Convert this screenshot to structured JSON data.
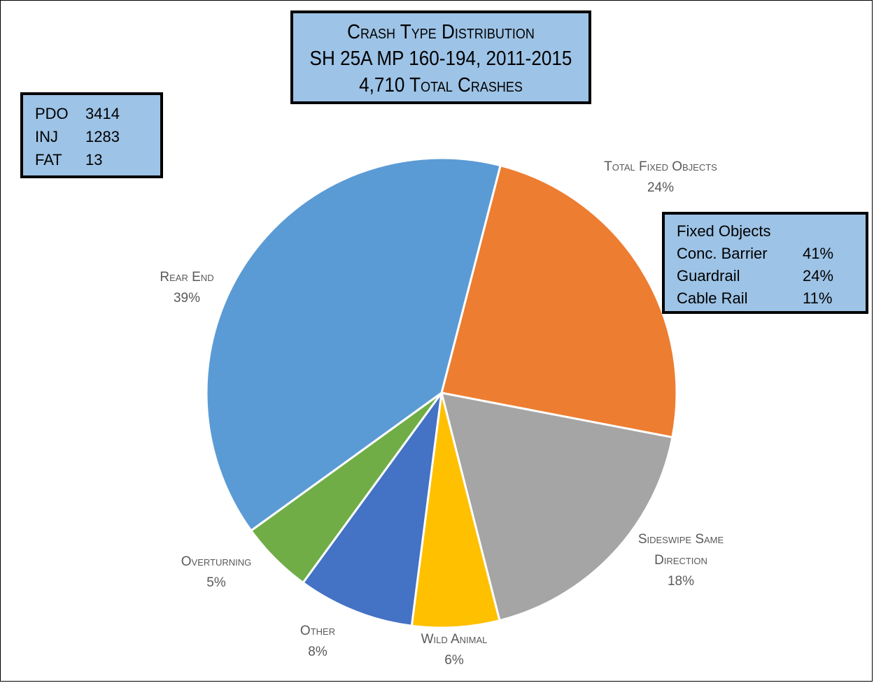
{
  "chart_data": {
    "type": "pie",
    "title_lines": [
      "Crash Type Distribution",
      "SH 25A MP 160-194, 2011-2015",
      "4,710 Total Crashes"
    ],
    "slices": [
      {
        "name": "Total Fixed Objects",
        "label_lines": [
          "Total Fixed Objects"
        ],
        "value": 24,
        "label": "24%",
        "color": "#ed7d31"
      },
      {
        "name": "Sideswipe Same Direction",
        "label_lines": [
          "Sideswipe Same",
          "Direction"
        ],
        "value": 18,
        "label": "18%",
        "color": "#a5a5a5"
      },
      {
        "name": "Wild Animal",
        "label_lines": [
          "Wild Animal"
        ],
        "value": 6,
        "label": "6%",
        "color": "#ffc000"
      },
      {
        "name": "Other",
        "label_lines": [
          "Other"
        ],
        "value": 8,
        "label": "8%",
        "color": "#4472c4"
      },
      {
        "name": "Overturning",
        "label_lines": [
          "Overturning"
        ],
        "value": 5,
        "label": "5%",
        "color": "#70ad47"
      },
      {
        "name": "Rear End",
        "label_lines": [
          "Rear End"
        ],
        "value": 39,
        "label": "39%",
        "color": "#5b9bd5"
      }
    ],
    "start_angle_deg": 14.5,
    "direction": "clockwise"
  },
  "severity_box": {
    "rows": [
      {
        "key": "PDO",
        "value": "3414"
      },
      {
        "key": "INJ",
        "value": "1283"
      },
      {
        "key": "FAT",
        "value": "13"
      }
    ]
  },
  "fixed_objects_box": {
    "heading": "Fixed Objects",
    "rows": [
      {
        "key": "Conc. Barrier",
        "value": "41%"
      },
      {
        "key": "Guardrail",
        "value": "24%"
      },
      {
        "key": "Cable Rail",
        "value": "11%"
      }
    ]
  }
}
